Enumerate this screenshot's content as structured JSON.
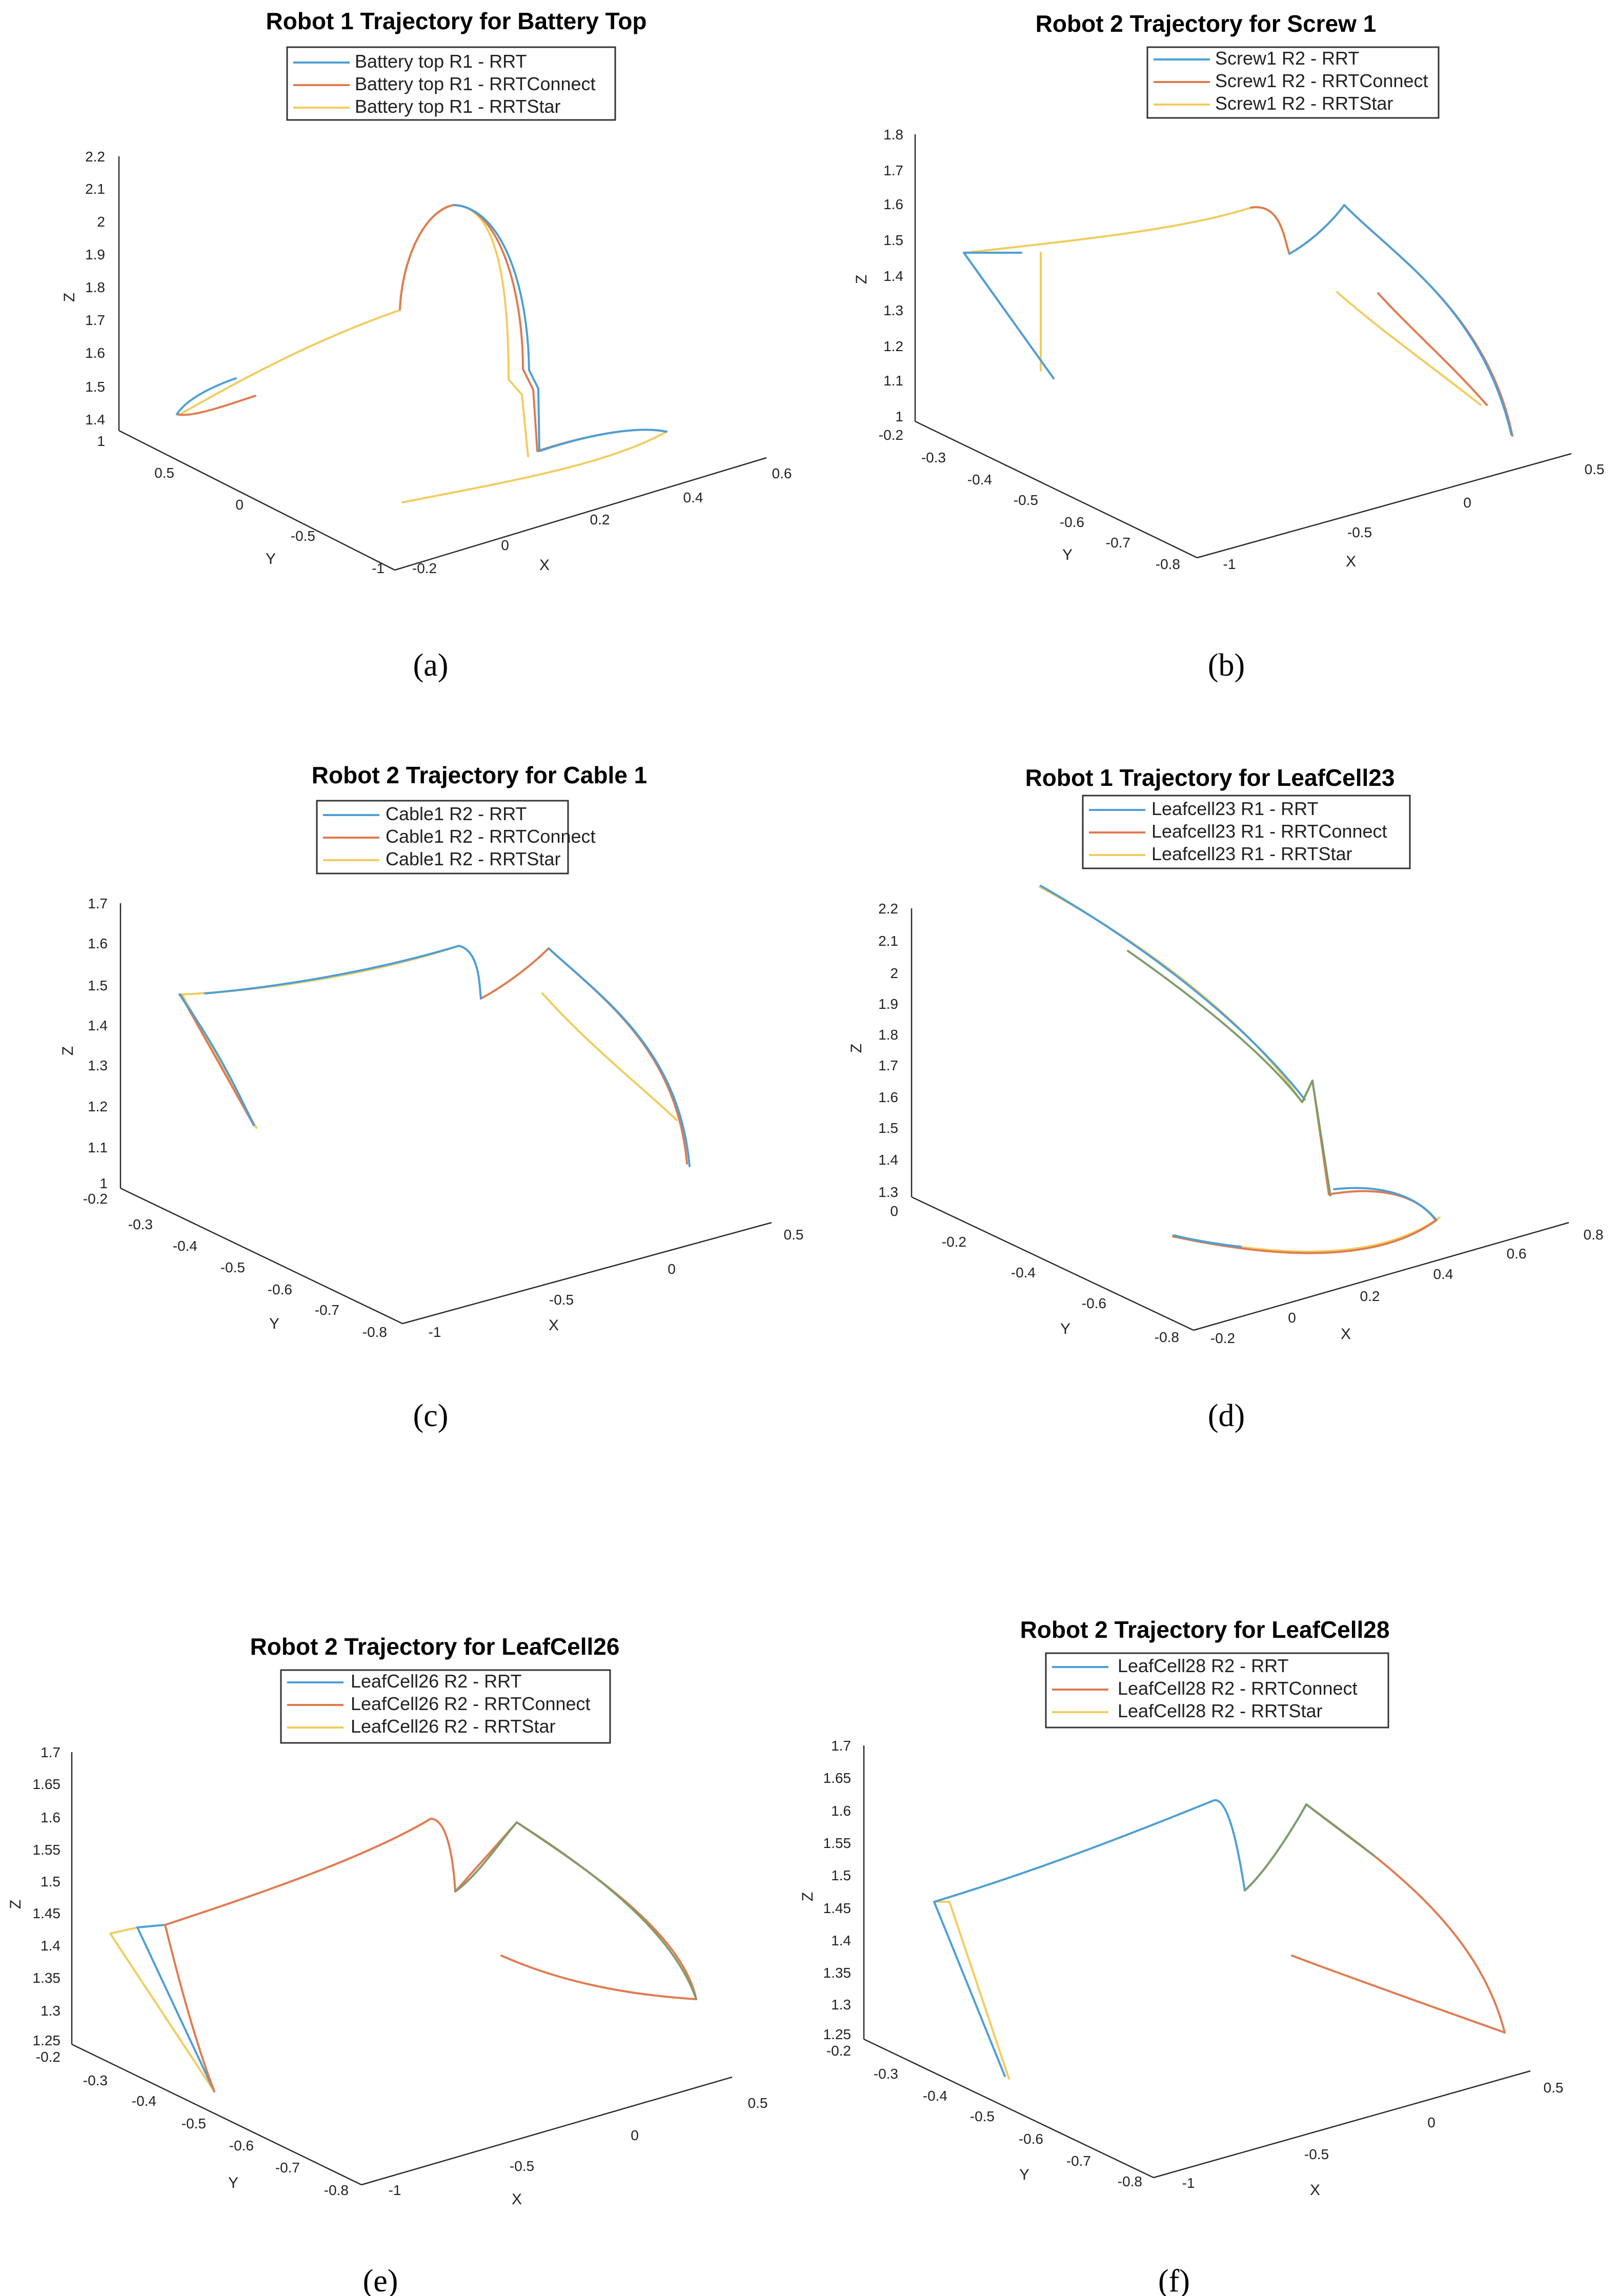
{
  "colors": {
    "RRT": "#4d9fd6",
    "RRTConnect": "#e07b4f",
    "RRTStar": "#f2cc5e"
  },
  "chart_data": [
    {
      "type": "line",
      "panel": "(a)",
      "title": "Robot 1 Trajectory for Battery Top",
      "xlabel": "X",
      "ylabel": "Y",
      "zlabel": "Z",
      "xticks": [
        "-0.2",
        "0",
        "0.2",
        "0.4",
        "0.6"
      ],
      "yticks": [
        "-1",
        "-0.5",
        "0",
        "0.5",
        "1"
      ],
      "zticks": [
        "1.4",
        "1.5",
        "1.6",
        "1.7",
        "1.8",
        "1.9",
        "2",
        "2.1",
        "2.2"
      ],
      "series": [
        {
          "name": "Battery top R1 - RRT",
          "method": "RRT"
        },
        {
          "name": "Battery top R1 - RRTConnect",
          "method": "RRTConnect"
        },
        {
          "name": "Battery top R1 - RRTStar",
          "method": "RRTStar"
        }
      ]
    },
    {
      "type": "line",
      "panel": "(b)",
      "title": "Robot 2 Trajectory for Screw 1",
      "xlabel": "X",
      "ylabel": "Y",
      "zlabel": "Z",
      "xticks": [
        "-1",
        "-0.5",
        "0",
        "0.5"
      ],
      "yticks": [
        "-0.8",
        "-0.7",
        "-0.6",
        "-0.5",
        "-0.4",
        "-0.3",
        "-0.2"
      ],
      "zticks": [
        "1",
        "1.1",
        "1.2",
        "1.3",
        "1.4",
        "1.5",
        "1.6",
        "1.7",
        "1.8"
      ],
      "series": [
        {
          "name": "Screw1 R2 - RRT",
          "method": "RRT"
        },
        {
          "name": "Screw1 R2 - RRTConnect",
          "method": "RRTConnect"
        },
        {
          "name": "Screw1 R2 - RRTStar",
          "method": "RRTStar"
        }
      ]
    },
    {
      "type": "line",
      "panel": "(c)",
      "title": "Robot 2 Trajectory for Cable 1",
      "xlabel": "X",
      "ylabel": "Y",
      "zlabel": "Z",
      "xticks": [
        "-1",
        "-0.5",
        "0",
        "0.5"
      ],
      "yticks": [
        "-0.8",
        "-0.7",
        "-0.6",
        "-0.5",
        "-0.4",
        "-0.3",
        "-0.2"
      ],
      "zticks": [
        "1",
        "1.1",
        "1.2",
        "1.3",
        "1.4",
        "1.5",
        "1.6",
        "1.7"
      ],
      "series": [
        {
          "name": "Cable1 R2 - RRT",
          "method": "RRT"
        },
        {
          "name": "Cable1 R2 - RRTConnect",
          "method": "RRTConnect"
        },
        {
          "name": "Cable1 R2 - RRTStar",
          "method": "RRTStar"
        }
      ]
    },
    {
      "type": "line",
      "panel": "(d)",
      "title": "Robot 1 Trajectory for LeafCell23",
      "xlabel": "X",
      "ylabel": "Y",
      "zlabel": "Z",
      "xticks": [
        "-0.2",
        "0",
        "0.2",
        "0.4",
        "0.6",
        "0.8"
      ],
      "yticks": [
        "-0.8",
        "-0.6",
        "-0.4",
        "-0.2",
        "0"
      ],
      "zticks": [
        "1.3",
        "1.4",
        "1.5",
        "1.6",
        "1.7",
        "1.8",
        "1.9",
        "2",
        "2.1",
        "2.2"
      ],
      "series": [
        {
          "name": "Leafcell23 R1 - RRT",
          "method": "RRT"
        },
        {
          "name": "Leafcell23 R1 - RRTConnect",
          "method": "RRTConnect"
        },
        {
          "name": "Leafcell23 R1 - RRTStar",
          "method": "RRTStar"
        }
      ]
    },
    {
      "type": "line",
      "panel": "(e)",
      "title": "Robot 2 Trajectory for LeafCell26",
      "xlabel": "X",
      "ylabel": "Y",
      "zlabel": "Z",
      "xticks": [
        "-1",
        "-0.5",
        "0",
        "0.5"
      ],
      "yticks": [
        "-0.8",
        "-0.7",
        "-0.6",
        "-0.5",
        "-0.4",
        "-0.3",
        "-0.2"
      ],
      "zticks": [
        "1.25",
        "1.3",
        "1.35",
        "1.4",
        "1.45",
        "1.5",
        "1.55",
        "1.6",
        "1.65",
        "1.7"
      ],
      "series": [
        {
          "name": "LeafCell26 R2 - RRT",
          "method": "RRT"
        },
        {
          "name": "LeafCell26 R2 - RRTConnect",
          "method": "RRTConnect"
        },
        {
          "name": "LeafCell26 R2 - RRTStar",
          "method": "RRTStar"
        }
      ]
    },
    {
      "type": "line",
      "panel": "(f)",
      "title": "Robot 2 Trajectory for LeafCell28",
      "xlabel": "X",
      "ylabel": "Y",
      "zlabel": "Z",
      "xticks": [
        "-1",
        "-0.5",
        "0",
        "0.5"
      ],
      "yticks": [
        "-0.8",
        "-0.7",
        "-0.6",
        "-0.5",
        "-0.4",
        "-0.3",
        "-0.2"
      ],
      "zticks": [
        "1.25",
        "1.3",
        "1.35",
        "1.4",
        "1.45",
        "1.5",
        "1.55",
        "1.6",
        "1.65",
        "1.7"
      ],
      "series": [
        {
          "name": "LeafCell28 R2 - RRT",
          "method": "RRT"
        },
        {
          "name": "LeafCell28 R2 - RRTConnect",
          "method": "RRTConnect"
        },
        {
          "name": "LeafCell28 R2 - RRTStar",
          "method": "RRTStar"
        }
      ]
    }
  ]
}
